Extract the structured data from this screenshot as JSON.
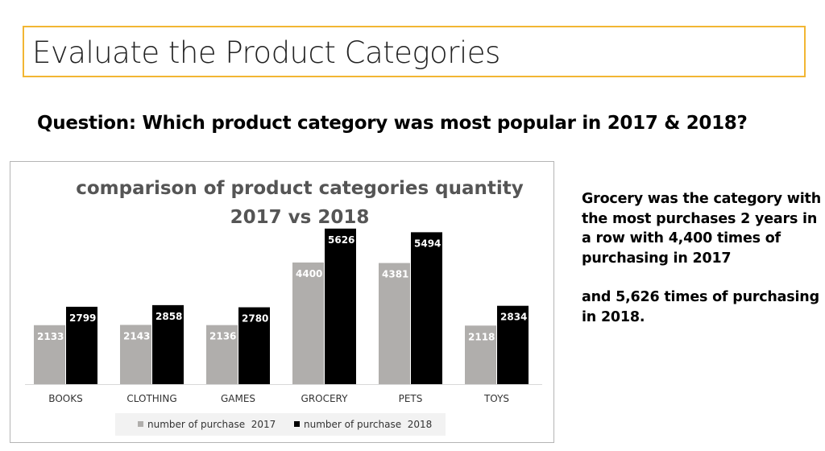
{
  "header": {
    "title": "Evaluate the Product Categories"
  },
  "question": "Question: Which product category was most popular in 2017 & 2018?",
  "insight": {
    "line1": "Grocery was the category with the most purchases 2 years in a row with 4,400 times of purchasing in 2017",
    "line2": "and 5,626 times of purchasing in 2018."
  },
  "colors": {
    "series_2017": "#b0aeac",
    "series_2018": "#000000",
    "accent_border": "#f2b633"
  },
  "chart_data": {
    "type": "bar",
    "title_lines": [
      "comparison of product categories quantity",
      "2017 vs 2018"
    ],
    "categories": [
      "BOOKS",
      "CLOTHING",
      "GAMES",
      "GROCERY",
      "PETS",
      "TOYS"
    ],
    "series": [
      {
        "name": "number of purchase  2017",
        "values": [
          2133,
          2143,
          2136,
          4400,
          4381,
          2118
        ]
      },
      {
        "name": "number of purchase  2018",
        "values": [
          2799,
          2858,
          2780,
          5626,
          5494,
          2834
        ]
      }
    ],
    "xlabel": "",
    "ylabel": "",
    "ylim": [
      0,
      6000
    ],
    "grid": false,
    "legend_position": "bottom",
    "data_labels": true
  }
}
